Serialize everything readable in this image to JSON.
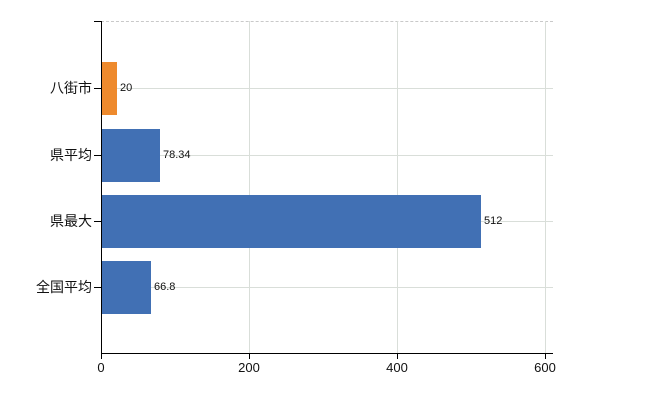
{
  "chart_data": {
    "type": "bar",
    "orientation": "horizontal",
    "title": "",
    "categories": [
      "八街市",
      "県平均",
      "県最大",
      "全国平均"
    ],
    "values": [
      20,
      78.34,
      512,
      66.8
    ],
    "value_labels": [
      "20",
      "78.34",
      "512",
      "66.8"
    ],
    "bar_colors": [
      "#ee8a2d",
      "#4170b4",
      "#4170b4",
      "#4170b4"
    ],
    "highlight_category": "八街市",
    "x_tick_values": [
      0,
      200,
      400,
      600
    ],
    "x_tick_labels": [
      "0",
      "200",
      "400",
      "600"
    ],
    "xlim": [
      0,
      611
    ],
    "grid": true,
    "legend": "none",
    "style": {
      "bar_default": "#4170b4",
      "bar_highlight": "#ee8a2d",
      "axis_color": "#000000",
      "gridline_color": "#d9ded9",
      "plot_top_border_color": "#c9c9c9",
      "background": "#ffffff",
      "text_color": "#111111"
    }
  }
}
